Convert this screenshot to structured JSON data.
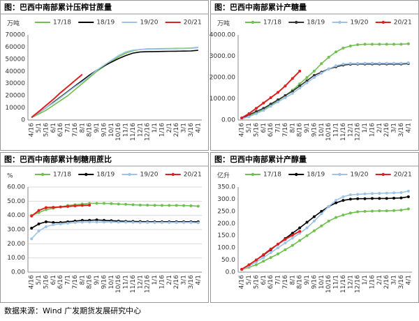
{
  "chart_data": [
    {
      "type": "line",
      "title": "图：巴西中南部累计压榨甘蔗量",
      "unit": "万吨",
      "markers": false,
      "grid": false,
      "legend": "top",
      "categories": [
        "4/16",
        "5/1",
        "5/16",
        "6/1",
        "6/16",
        "7/1",
        "7/16",
        "8/1",
        "8/16",
        "9/1",
        "9/16",
        "10/1",
        "10/16",
        "11/1",
        "11/16",
        "12/1",
        "12/16",
        "1/1",
        "1/16",
        "2/1",
        "2/16",
        "3/1",
        "3/16",
        "4/1"
      ],
      "ylim": [
        0,
        70000
      ],
      "yticks": [
        0,
        10000,
        20000,
        30000,
        40000,
        50000,
        60000,
        70000
      ],
      "series": [
        {
          "name": "17/18",
          "color": "#70c050",
          "values": [
            2000,
            5000,
            8000,
            12000,
            16000,
            20000,
            25000,
            30000,
            35000,
            40000,
            44000,
            48000,
            52000,
            55000,
            57000,
            58000,
            58500,
            58600,
            58700,
            58800,
            58900,
            59000,
            59200,
            59800
          ]
        },
        {
          "name": "18/19",
          "color": "#000000",
          "values": [
            2000,
            6000,
            10000,
            14500,
            19000,
            23500,
            28000,
            32500,
            37000,
            41000,
            44500,
            47500,
            50500,
            53000,
            55000,
            56000,
            56200,
            56300,
            56400,
            56500,
            56600,
            56700,
            56800,
            57300
          ]
        },
        {
          "name": "19/20",
          "color": "#9dc3e6",
          "values": [
            2000,
            6000,
            10000,
            14000,
            18500,
            23000,
            27500,
            31500,
            36000,
            41000,
            45000,
            49000,
            53000,
            56000,
            57500,
            58000,
            58200,
            58300,
            58400,
            58500,
            58600,
            58700,
            58900,
            59500
          ]
        },
        {
          "name": "20/21",
          "color": "#e02020",
          "values": [
            2200,
            7000,
            12000,
            17000,
            22500,
            27500,
            32500,
            37500,
            null,
            null,
            null,
            null,
            null,
            null,
            null,
            null,
            null,
            null,
            null,
            null,
            null,
            null,
            null,
            null
          ]
        }
      ]
    },
    {
      "type": "line",
      "title": "图：巴西中南部累计产糖量",
      "unit": "万吨",
      "markers": true,
      "grid": false,
      "legend": "top",
      "categories": [
        "4/16",
        "5/1",
        "5/16",
        "6/1",
        "6/16",
        "7/1",
        "7/16",
        "8/1",
        "8/16",
        "9/1",
        "9/16",
        "10/1",
        "10/16",
        "11/1",
        "11/16",
        "12/1",
        "12/16",
        "1/1",
        "1/16",
        "2/1",
        "2/16",
        "3/1",
        "3/16",
        "4/1"
      ],
      "ylim": [
        0,
        4000
      ],
      "yticks": [
        {
          "value": 0,
          "label": "0.00"
        },
        {
          "value": 1000,
          "label": "1000.00"
        },
        {
          "value": 2000,
          "label": "2000.00"
        },
        {
          "value": 3000,
          "label": "3000.00"
        },
        {
          "value": 4000,
          "label": "4000.00"
        }
      ],
      "series": [
        {
          "name": "17/18",
          "color": "#70c050",
          "values": [
            100,
            200,
            350,
            500,
            700,
            900,
            1150,
            1400,
            1700,
            2000,
            2300,
            2650,
            2950,
            3200,
            3380,
            3480,
            3540,
            3560,
            3560,
            3560,
            3560,
            3560,
            3560,
            3580
          ]
        },
        {
          "name": "18/19",
          "color": "#333333",
          "values": [
            80,
            250,
            400,
            550,
            750,
            950,
            1150,
            1350,
            1600,
            1850,
            2100,
            2250,
            2400,
            2500,
            2580,
            2620,
            2630,
            2630,
            2630,
            2630,
            2630,
            2630,
            2630,
            2650
          ]
        },
        {
          "name": "19/20",
          "color": "#9dc3e6",
          "values": [
            60,
            150,
            300,
            450,
            650,
            850,
            1050,
            1250,
            1500,
            1750,
            2000,
            2200,
            2400,
            2550,
            2630,
            2660,
            2660,
            2670,
            2670,
            2670,
            2670,
            2670,
            2670,
            2690
          ]
        },
        {
          "name": "20/21",
          "color": "#e02020",
          "values": [
            100,
            300,
            550,
            800,
            1050,
            1300,
            1600,
            1950,
            2300,
            null,
            null,
            null,
            null,
            null,
            null,
            null,
            null,
            null,
            null,
            null,
            null,
            null,
            null,
            null
          ]
        }
      ]
    },
    {
      "type": "line",
      "title": "图：巴西中南部累计制糖用蔗比",
      "unit": "%",
      "markers": true,
      "grid": true,
      "legend": "top",
      "categories": [
        "4/16",
        "5/1",
        "5/16",
        "6/1",
        "6/16",
        "7/1",
        "7/16",
        "8/1",
        "8/16",
        "9/1",
        "9/16",
        "10/1",
        "10/16",
        "11/1",
        "11/16",
        "12/1",
        "12/16",
        "1/1",
        "1/16",
        "2/1",
        "2/16",
        "3/1",
        "3/16",
        "4/1"
      ],
      "ylim": [
        0,
        60
      ],
      "yticks": [
        {
          "value": 0,
          "label": "0.00"
        },
        {
          "value": 10,
          "label": "10.00"
        },
        {
          "value": 20,
          "label": "20.00"
        },
        {
          "value": 30,
          "label": "30.00"
        },
        {
          "value": 40,
          "label": "40.00"
        },
        {
          "value": 50,
          "label": "50.00"
        },
        {
          "value": 60,
          "label": "60.00"
        }
      ],
      "series": [
        {
          "name": "17/18",
          "color": "#70c050",
          "values": [
            40,
            42,
            44,
            45,
            46,
            47,
            47.5,
            48,
            48.5,
            48.5,
            48.5,
            48.3,
            48,
            47.8,
            47.5,
            47.3,
            47.2,
            47.1,
            47,
            47,
            47,
            46.9,
            46.8,
            46.5
          ]
        },
        {
          "name": "18/19",
          "color": "#000000",
          "values": [
            31,
            34,
            35.5,
            35,
            35,
            35.5,
            36,
            36.5,
            36.5,
            36.8,
            36.5,
            36.3,
            36,
            35.8,
            35.7,
            35.6,
            35.5,
            35.5,
            35.5,
            35.5,
            35.5,
            35.5,
            35.5,
            35.5
          ]
        },
        {
          "name": "19/20",
          "color": "#9dc3e6",
          "values": [
            23.5,
            29,
            32,
            33.5,
            34,
            34.5,
            35,
            35.2,
            35.3,
            35.3,
            35.3,
            35.3,
            35.2,
            35.2,
            35.1,
            35,
            35,
            35,
            35,
            35,
            35,
            35,
            35,
            34.8
          ]
        },
        {
          "name": "20/21",
          "color": "#e02020",
          "values": [
            39.5,
            43.5,
            45.5,
            45.7,
            46,
            46.3,
            46.7,
            47,
            47.2,
            null,
            null,
            null,
            null,
            null,
            null,
            null,
            null,
            null,
            null,
            null,
            null,
            null,
            null,
            null
          ]
        }
      ]
    },
    {
      "type": "line",
      "title": "图：巴西中南部累计产醇量",
      "unit": "亿升",
      "markers": true,
      "grid": false,
      "legend": "top",
      "categories": [
        "4/16",
        "5/1",
        "5/16",
        "6/1",
        "6/16",
        "7/1",
        "7/16",
        "8/1",
        "8/16",
        "9/1",
        "9/16",
        "10/1",
        "10/16",
        "11/1",
        "11/16",
        "12/1",
        "12/16",
        "1/1",
        "1/16",
        "2/1",
        "2/16",
        "3/1",
        "3/16",
        "4/1"
      ],
      "ylim": [
        0,
        350
      ],
      "yticks": [
        {
          "value": 0,
          "label": "0.0"
        },
        {
          "value": 50,
          "label": "50.0"
        },
        {
          "value": 100,
          "label": "100.0"
        },
        {
          "value": 150,
          "label": "150.0"
        },
        {
          "value": 200,
          "label": "200.0"
        },
        {
          "value": 250,
          "label": "250.0"
        },
        {
          "value": 300,
          "label": "300.0"
        },
        {
          "value": 350,
          "label": "350.0"
        }
      ],
      "series": [
        {
          "name": "17/18",
          "color": "#70c050",
          "values": [
            10,
            20,
            30,
            45,
            60,
            75,
            92,
            110,
            130,
            150,
            170,
            190,
            210,
            225,
            235,
            243,
            248,
            250,
            251,
            252,
            252,
            253,
            255,
            260
          ]
        },
        {
          "name": "18/19",
          "color": "#000000",
          "values": [
            12,
            30,
            50,
            70,
            92,
            115,
            138,
            160,
            182,
            205,
            228,
            250,
            270,
            285,
            295,
            300,
            302,
            302,
            303,
            303,
            303,
            304,
            305,
            310
          ]
        },
        {
          "name": "19/20",
          "color": "#9dc3e6",
          "values": [
            10,
            25,
            42,
            60,
            80,
            100,
            120,
            140,
            160,
            182,
            210,
            240,
            270,
            295,
            310,
            318,
            320,
            322,
            323,
            324,
            325,
            326,
            327,
            333
          ]
        },
        {
          "name": "20/21",
          "color": "#e02020",
          "values": [
            12,
            30,
            50,
            72,
            95,
            115,
            135,
            152,
            168,
            null,
            null,
            null,
            null,
            null,
            null,
            null,
            null,
            null,
            null,
            null,
            null,
            null,
            null,
            null
          ]
        }
      ]
    }
  ],
  "source": "数据来源：Wind 广发期货发展研究中心"
}
